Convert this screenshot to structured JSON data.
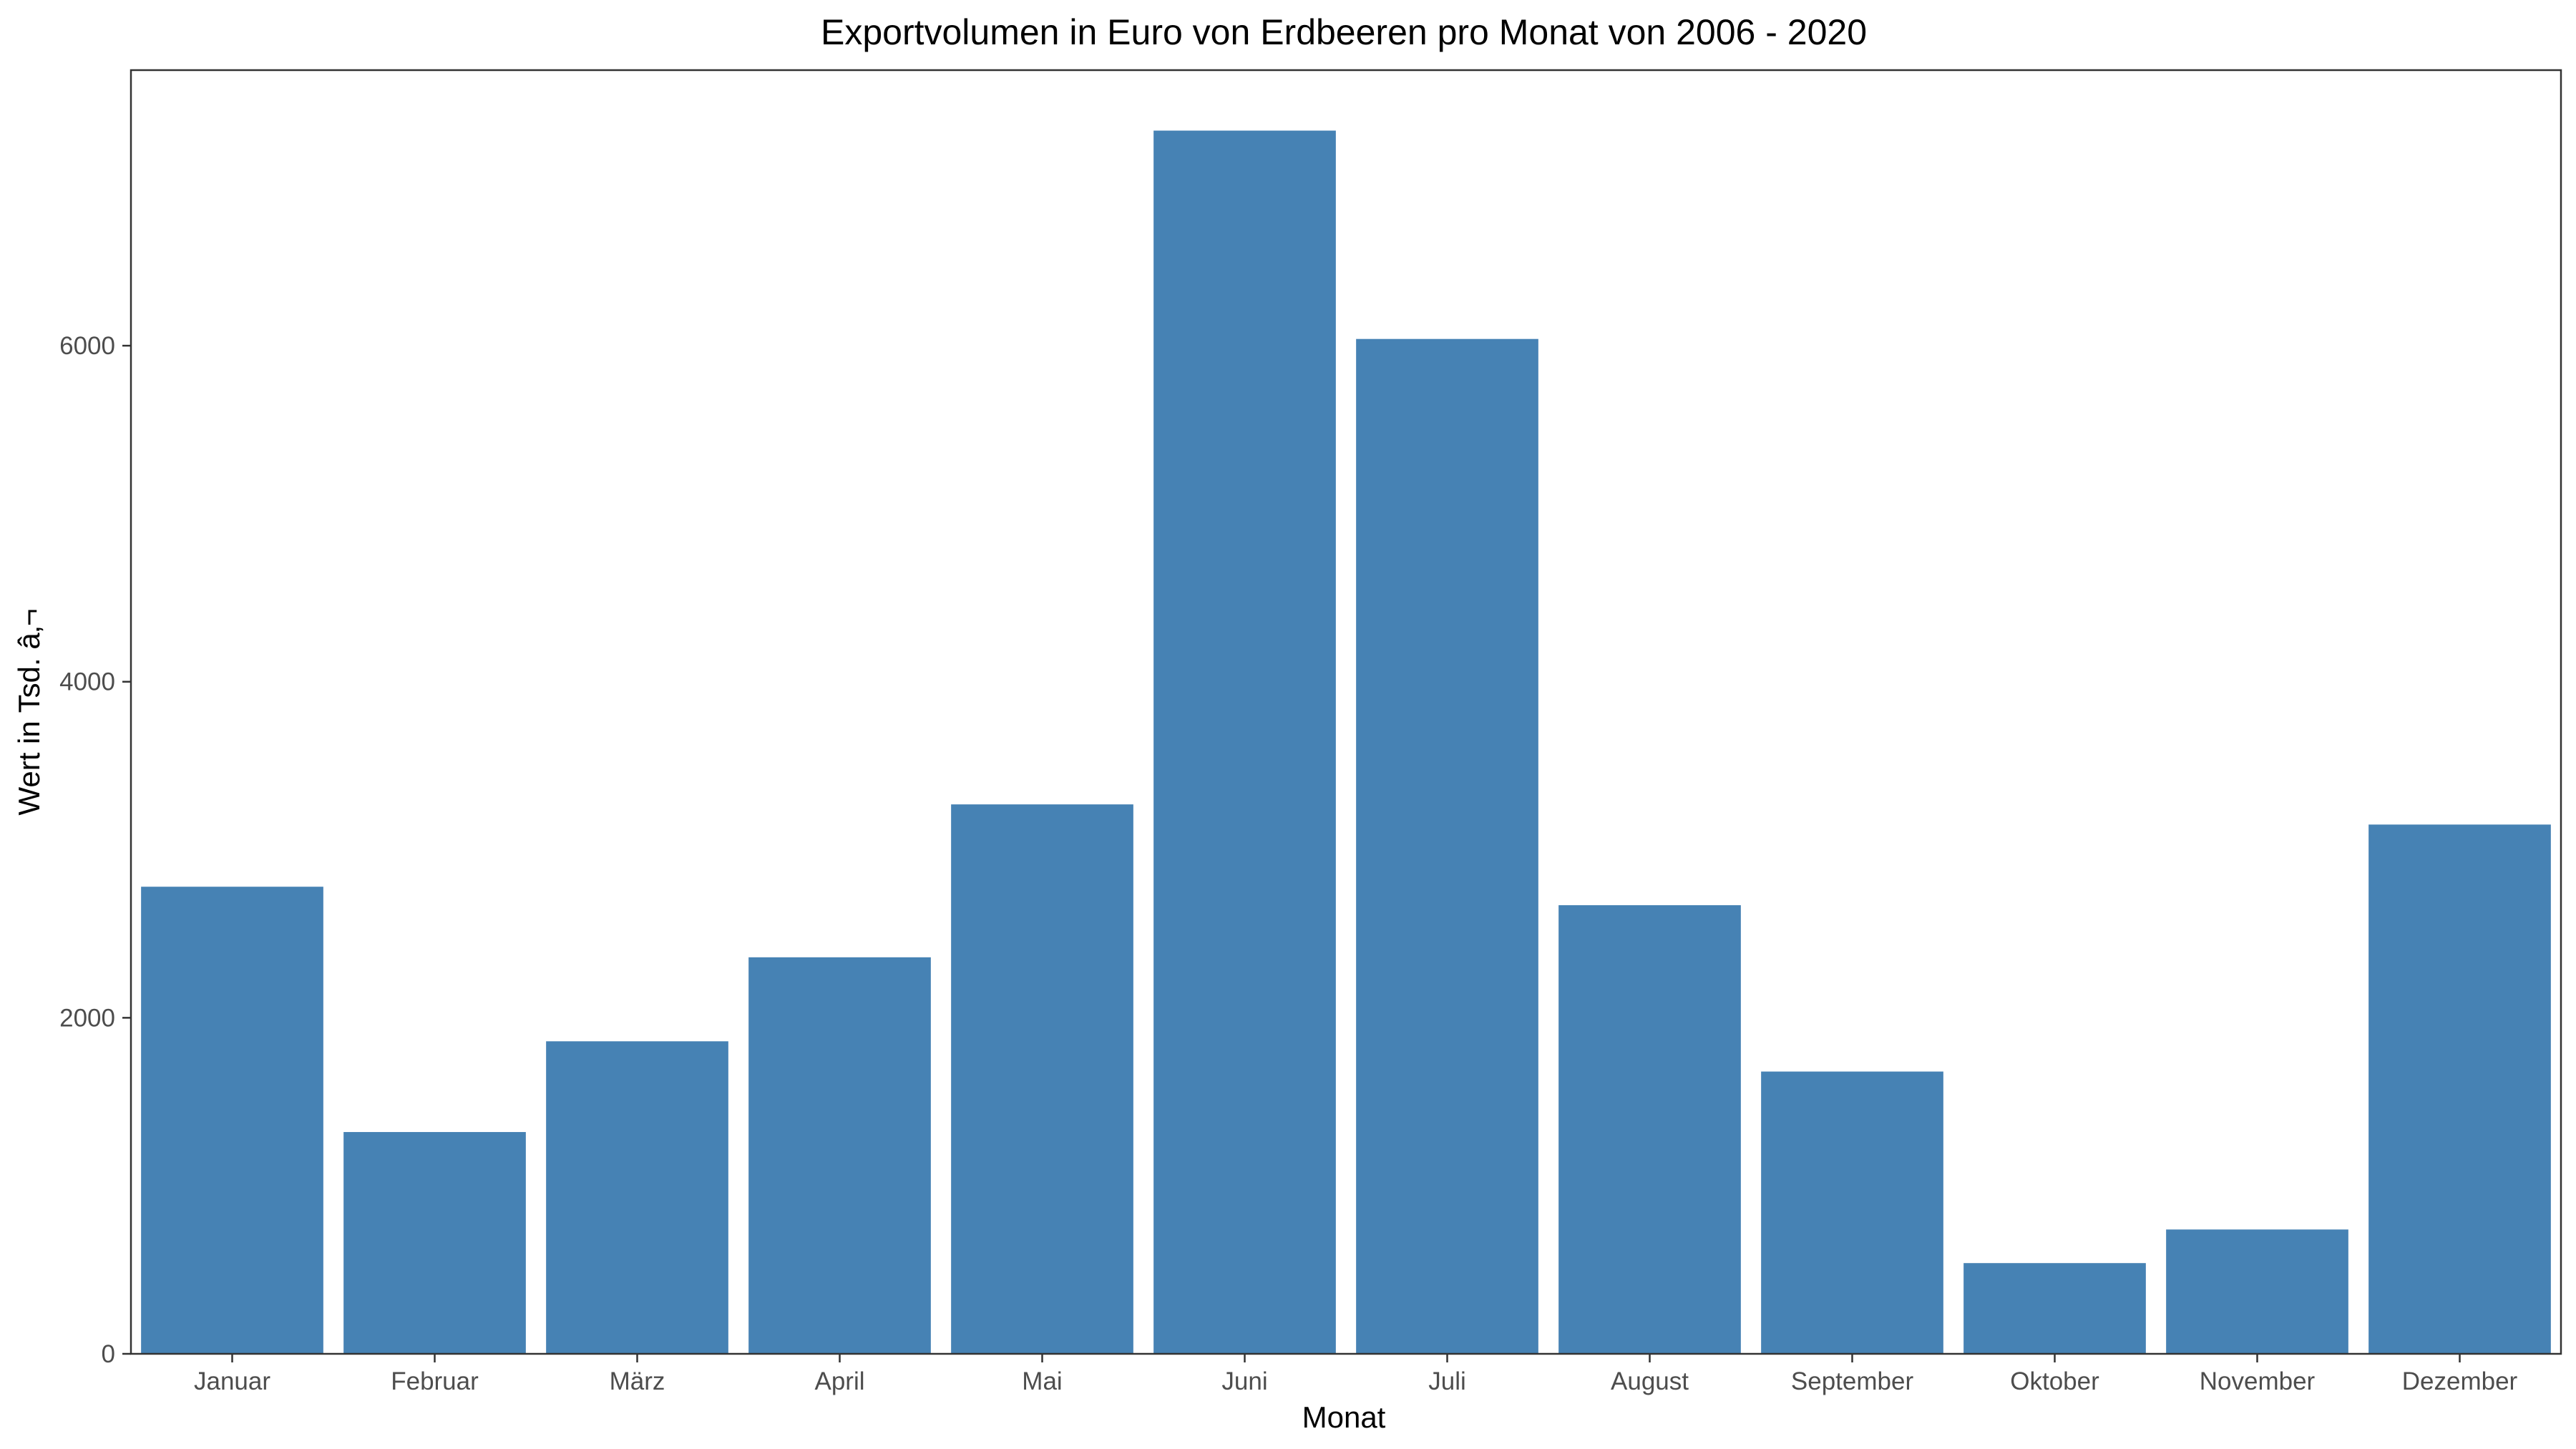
{
  "chart_data": {
    "type": "bar",
    "title": "Exportvolumen in Euro von Erdbeeren pro Monat von 2006 - 2020",
    "xlabel": "Monat",
    "ylabel": "Wert in Tsd. â‚¬",
    "categories": [
      "Januar",
      "Februar",
      "März",
      "April",
      "Mai",
      "Juni",
      "Juli",
      "August",
      "September",
      "Oktober",
      "November",
      "Dezember"
    ],
    "values": [
      2780,
      1320,
      1860,
      2360,
      3270,
      7280,
      6040,
      2670,
      1680,
      540,
      740,
      3150
    ],
    "ylim": [
      0,
      7640
    ],
    "yticks": [
      0,
      2000,
      4000,
      6000
    ],
    "grid": false,
    "bar_color": "#4682b4"
  }
}
